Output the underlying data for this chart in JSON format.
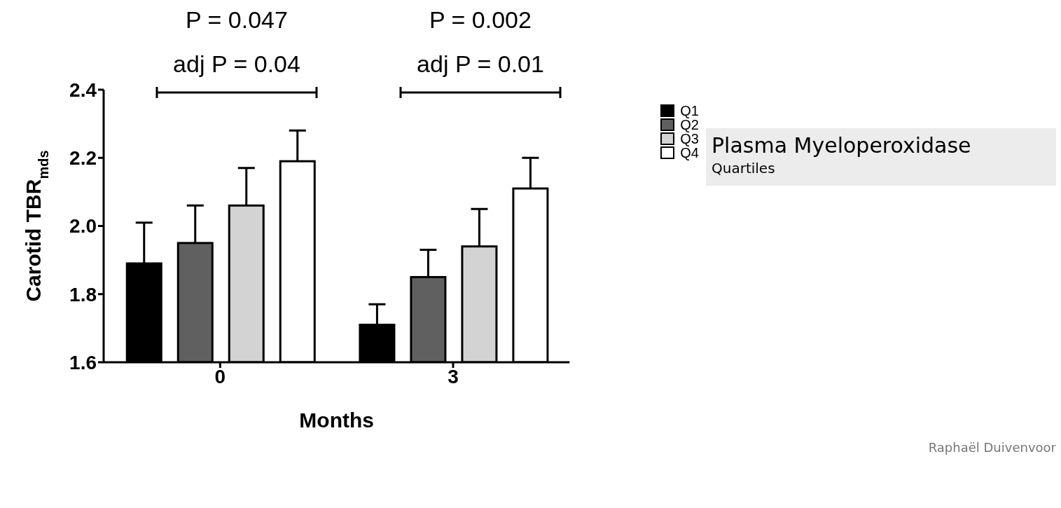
{
  "chart_data": {
    "type": "bar",
    "title": "Plasma Myeloperoxidase",
    "subtitle": "Quartiles",
    "xlabel": "Months",
    "ylabel": "Carotid TBR$_{mds}$",
    "categories": [
      "0",
      "3"
    ],
    "series": [
      {
        "name": "Q1",
        "color": "#000000",
        "values": [
          1.89,
          1.71
        ],
        "errors": [
          [
            1.89,
            2.01
          ],
          [
            1.71,
            1.77
          ]
        ]
      },
      {
        "name": "Q2",
        "color": "#606060",
        "values": [
          1.95,
          1.85
        ],
        "errors": [
          [
            1.95,
            2.06
          ],
          [
            1.85,
            1.93
          ]
        ]
      },
      {
        "name": "Q3",
        "color": "#d3d3d3",
        "values": [
          2.06,
          1.94
        ],
        "errors": [
          [
            2.06,
            2.17
          ],
          [
            1.94,
            2.05
          ]
        ]
      },
      {
        "name": "Q4",
        "color": "#ffffff",
        "values": [
          2.19,
          2.11
        ],
        "errors": [
          [
            2.19,
            2.28
          ],
          [
            2.11,
            2.2
          ]
        ]
      }
    ],
    "ylim": [
      1.6,
      2.4
    ],
    "yticks": [
      1.6,
      1.8,
      {
        "value": 2,
        "label": "2.0"
      },
      2.2,
      2.4
    ],
    "grid": false,
    "legend": "right",
    "annotations": [
      "P = 0.047",
      "adj P = 0.04",
      "P = 0.002",
      "adj P = 0.01",
      "Raphaël Duivenvoor"
    ]
  }
}
